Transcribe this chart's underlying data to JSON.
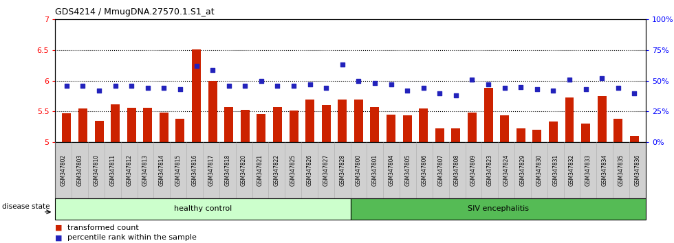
{
  "title": "GDS4214 / MmugDNA.27570.1.S1_at",
  "categories": [
    "GSM347802",
    "GSM347803",
    "GSM347810",
    "GSM347811",
    "GSM347812",
    "GSM347813",
    "GSM347814",
    "GSM347815",
    "GSM347816",
    "GSM347817",
    "GSM347818",
    "GSM347820",
    "GSM347821",
    "GSM347822",
    "GSM347825",
    "GSM347826",
    "GSM347827",
    "GSM347828",
    "GSM347800",
    "GSM347801",
    "GSM347804",
    "GSM347805",
    "GSM347806",
    "GSM347807",
    "GSM347808",
    "GSM347809",
    "GSM347823",
    "GSM347824",
    "GSM347829",
    "GSM347830",
    "GSM347831",
    "GSM347832",
    "GSM347833",
    "GSM347834",
    "GSM347835",
    "GSM347836"
  ],
  "bar_values": [
    5.47,
    5.55,
    5.35,
    5.62,
    5.56,
    5.56,
    5.48,
    5.38,
    6.51,
    6.0,
    5.57,
    5.53,
    5.46,
    5.57,
    5.52,
    5.7,
    5.6,
    5.7,
    5.7,
    5.57,
    5.45,
    5.44,
    5.55,
    5.22,
    5.22,
    5.48,
    5.88,
    5.44,
    5.22,
    5.2,
    5.34,
    5.73,
    5.3,
    5.75,
    5.38,
    5.1
  ],
  "percentile_values": [
    46,
    46,
    42,
    46,
    46,
    44,
    44,
    43,
    62,
    59,
    46,
    46,
    50,
    46,
    46,
    47,
    44,
    63,
    50,
    48,
    47,
    42,
    44,
    40,
    38,
    51,
    47,
    44,
    45,
    43,
    42,
    51,
    43,
    52,
    44,
    40
  ],
  "healthy_control_count": 18,
  "bar_color": "#cc2200",
  "percentile_color": "#2222bb",
  "ylim_left": [
    5.0,
    7.0
  ],
  "ylim_right": [
    0,
    100
  ],
  "yticks_left": [
    5.0,
    5.5,
    6.0,
    6.5,
    7.0
  ],
  "yticks_right": [
    0,
    25,
    50,
    75,
    100
  ],
  "healthy_bg": "#ccffcc",
  "siv_bg": "#55bb55",
  "label_healthy": "healthy control",
  "label_siv": "SIV encephalitis",
  "disease_state_label": "disease state",
  "legend_bar": "transformed count",
  "legend_pct": "percentile rank within the sample",
  "xlabel_bg": "#d0d0d0",
  "plot_bg": "#ffffff",
  "tick_color_left": "red",
  "tick_color_right": "blue"
}
